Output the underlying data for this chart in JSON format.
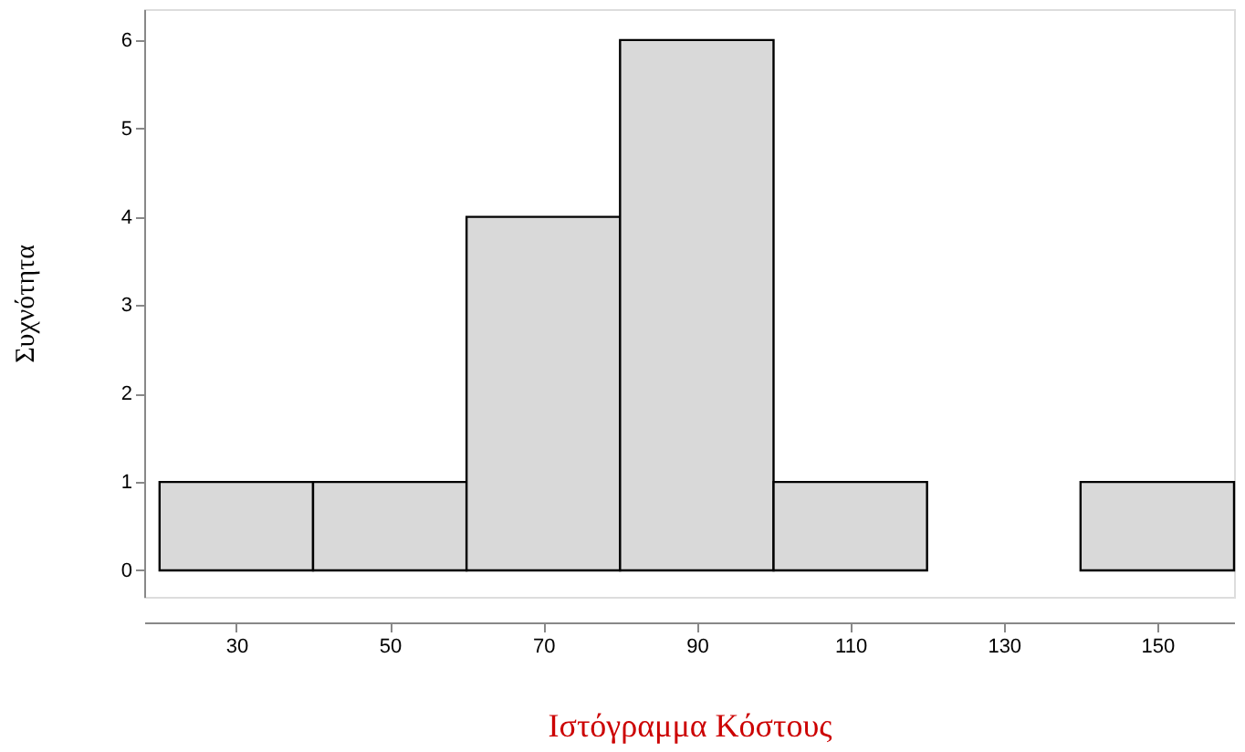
{
  "chart_data": {
    "type": "histogram",
    "xlabel": "Ιστόγραμμα Κόστους",
    "ylabel": "Συχνότητα",
    "bins": [
      20,
      40,
      60,
      80,
      100,
      120,
      140,
      160
    ],
    "values": [
      1,
      1,
      4,
      6,
      1,
      0,
      1
    ],
    "color": "#d9d9d9",
    "xlim": [
      18,
      160
    ],
    "xticks": [
      30,
      50,
      70,
      90,
      110,
      130,
      150
    ],
    "ylim": [
      -0.3,
      6.35
    ],
    "yticks": [
      0,
      1,
      2,
      3,
      4,
      5,
      6
    ],
    "grid": false
  }
}
